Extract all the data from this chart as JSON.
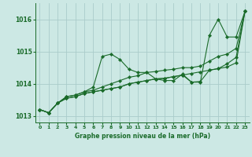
{
  "xlabel": "Graphe pression niveau de la mer (hPa)",
  "background_color": "#cce8e4",
  "grid_color": "#aaccca",
  "line_color": "#1a6b2a",
  "marker_color": "#1a6b2a",
  "xlim": [
    -0.5,
    23.5
  ],
  "ylim": [
    1012.8,
    1016.5
  ],
  "yticks": [
    1013,
    1014,
    1015,
    1016
  ],
  "xticks": [
    0,
    1,
    2,
    3,
    4,
    5,
    6,
    7,
    8,
    9,
    10,
    11,
    12,
    13,
    14,
    15,
    16,
    17,
    18,
    19,
    20,
    21,
    22,
    23
  ],
  "series": [
    [
      1013.2,
      1013.1,
      1013.4,
      1013.6,
      1013.65,
      1013.75,
      1013.9,
      1014.85,
      1014.92,
      1014.75,
      1014.45,
      1014.35,
      1014.35,
      1014.15,
      1014.1,
      1014.1,
      1014.3,
      1014.05,
      1014.05,
      1015.5,
      1016.0,
      1015.45,
      1015.45,
      1016.25
    ],
    [
      1013.2,
      1013.1,
      1013.4,
      1013.6,
      1013.65,
      1013.75,
      1013.8,
      1013.9,
      1014.0,
      1014.1,
      1014.2,
      1014.25,
      1014.35,
      1014.38,
      1014.42,
      1014.45,
      1014.5,
      1014.5,
      1014.55,
      1014.7,
      1014.85,
      1014.92,
      1015.1,
      1016.25
    ],
    [
      1013.2,
      1013.1,
      1013.4,
      1013.55,
      1013.6,
      1013.7,
      1013.75,
      1013.8,
      1013.85,
      1013.9,
      1014.0,
      1014.05,
      1014.1,
      1014.15,
      1014.17,
      1014.22,
      1014.27,
      1014.32,
      1014.37,
      1014.42,
      1014.47,
      1014.52,
      1014.65,
      1016.25
    ],
    [
      1013.2,
      1013.1,
      1013.4,
      1013.55,
      1013.6,
      1013.7,
      1013.75,
      1013.8,
      1013.85,
      1013.9,
      1014.0,
      1014.05,
      1014.1,
      1014.15,
      1014.17,
      1014.22,
      1014.27,
      1014.05,
      1014.07,
      1014.42,
      1014.47,
      1014.62,
      1014.82,
      1016.25
    ]
  ]
}
